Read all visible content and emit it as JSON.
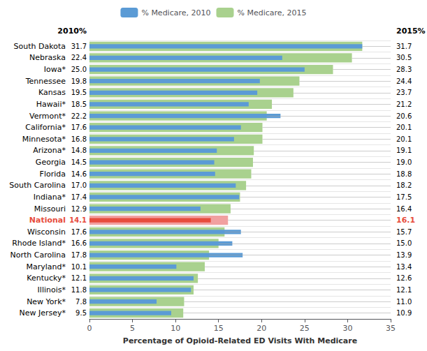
{
  "chart_data": {
    "type": "bar",
    "orientation": "horizontal",
    "categories": [
      "South Dakota",
      "Nebraska",
      "Iowa*",
      "Tennessee",
      "Kansas",
      "Hawaii*",
      "Vermont*",
      "California*",
      "Minnesota*",
      "Arizona*",
      "Georgia",
      "Florida",
      "South Carolina",
      "Indiana*",
      "Missouri",
      "National",
      "Wisconsin",
      "Rhode Island*",
      "North Carolina",
      "Maryland*",
      "Kentucky*",
      "Illinois*",
      "New York*",
      "New Jersey*"
    ],
    "series": [
      {
        "name": "% Medicare, 2010",
        "color": "#5b9bd5",
        "colors": [
          "#5b9bd5",
          "#5b9bd5",
          "#5b9bd5",
          "#5b9bd5",
          "#5b9bd5",
          "#5b9bd5",
          "#5b9bd5",
          "#5b9bd5",
          "#5b9bd5",
          "#5b9bd5",
          "#5b9bd5",
          "#5b9bd5",
          "#5b9bd5",
          "#5b9bd5",
          "#5b9bd5",
          "#e74c3c",
          "#5b9bd5",
          "#5b9bd5",
          "#5b9bd5",
          "#5b9bd5",
          "#5b9bd5",
          "#5b9bd5",
          "#5b9bd5",
          "#5b9bd5"
        ],
        "values": [
          31.7,
          22.4,
          25.0,
          19.8,
          19.5,
          18.5,
          22.2,
          17.6,
          16.8,
          14.8,
          14.5,
          14.6,
          17.0,
          17.4,
          12.9,
          14.1,
          17.6,
          16.6,
          17.8,
          10.1,
          12.1,
          11.8,
          7.8,
          9.5
        ],
        "value_labels": [
          "31.7",
          "22.4",
          "25.0",
          "19.8",
          "19.5",
          "18.5",
          "22.2",
          "17.6",
          "16.8",
          "14.8",
          "14.5",
          "14.6",
          "17.0",
          "17.4",
          "12.9",
          "14.1",
          "17.6",
          "16.6",
          "17.8",
          "10.1",
          "12.1",
          "11.8",
          "7.8",
          "9.5"
        ]
      },
      {
        "name": "% Medicare, 2015",
        "color": "#a9d18e",
        "colors": [
          "#a9d18e",
          "#a9d18e",
          "#a9d18e",
          "#a9d18e",
          "#a9d18e",
          "#a9d18e",
          "#a9d18e",
          "#a9d18e",
          "#a9d18e",
          "#a9d18e",
          "#a9d18e",
          "#a9d18e",
          "#a9d18e",
          "#a9d18e",
          "#a9d18e",
          "#f1a0a0",
          "#a9d18e",
          "#a9d18e",
          "#a9d18e",
          "#a9d18e",
          "#a9d18e",
          "#a9d18e",
          "#a9d18e",
          "#a9d18e"
        ],
        "values": [
          31.7,
          30.5,
          28.3,
          24.4,
          23.7,
          21.2,
          20.6,
          20.1,
          20.1,
          19.1,
          19.0,
          18.8,
          18.2,
          17.5,
          16.4,
          16.1,
          15.7,
          15.0,
          13.9,
          13.4,
          12.6,
          12.1,
          11.0,
          10.9
        ],
        "value_labels": [
          "31.7",
          "30.5",
          "28.3",
          "24.4",
          "23.7",
          "21.2",
          "20.6",
          "20.1",
          "20.1",
          "19.1",
          "19.0",
          "18.8",
          "18.2",
          "17.5",
          "16.4",
          "16.1",
          "15.7",
          "15.0",
          "13.9",
          "13.4",
          "12.6",
          "12.1",
          "11.0",
          "10.9"
        ]
      }
    ],
    "annotations": [
      "2010%",
      "2015%"
    ],
    "xlabel": "Percentage of Opioid-Related ED Visits With Medicare",
    "xlim": [
      0,
      35
    ],
    "xticks": [
      0,
      5,
      10,
      15,
      20,
      25,
      30,
      35
    ],
    "data_labels": true,
    "grid": true,
    "legend": "top"
  }
}
